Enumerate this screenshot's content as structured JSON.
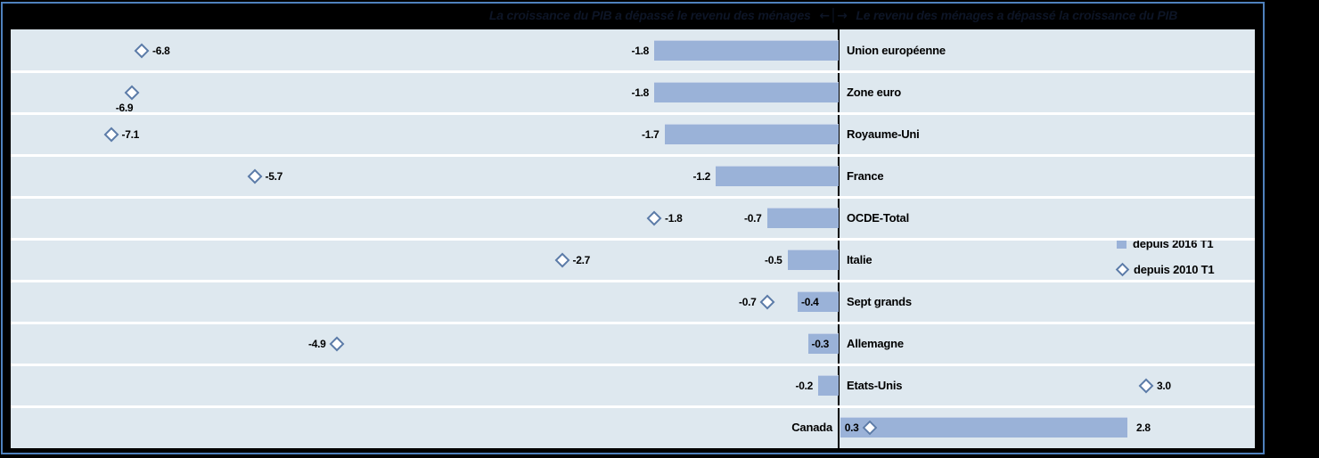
{
  "chart_data": {
    "type": "bar",
    "orientation": "horizontal",
    "title_left": "La croissance du PIB a dépassé le revenu des ménages",
    "title_divider": "←│→",
    "title_right": "Le revenu des ménages a dépassé la croissance du PIB",
    "legend_position": "middle-right",
    "legend": [
      {
        "label": "depuis 2016 T1",
        "marker": "square"
      },
      {
        "label": "depuis 2010 T1",
        "marker": "diamond"
      }
    ],
    "xlim": [
      -8.1,
      4.1
    ],
    "grid": "row-bands-with-white-separators",
    "categories": [
      "Union européenne",
      "Zone euro",
      "Royaume-Uni",
      "France",
      "OCDE-Total",
      "Italie",
      "Sept grands",
      "Allemagne",
      "Etats-Unis",
      "Canada"
    ],
    "series": [
      {
        "name": "depuis 2016 T1",
        "marker": "bar",
        "values": [
          -1.8,
          -1.8,
          -1.7,
          -1.2,
          -0.7,
          -0.5,
          -0.4,
          -0.3,
          -0.2,
          2.8
        ]
      },
      {
        "name": "depuis 2010 T1",
        "marker": "diamond",
        "values": [
          -6.8,
          -6.9,
          -7.1,
          -5.7,
          -1.8,
          -2.7,
          -0.7,
          -4.9,
          3.0,
          0.3
        ]
      }
    ],
    "rows": [
      {
        "category": "Union européenne",
        "bar": -1.8,
        "bar_label": "-1.8",
        "bar_label_pos": "outside-left",
        "diamond": -6.8,
        "diamond_label": "-6.8",
        "diamond_label_pos": "right",
        "category_side": "right"
      },
      {
        "category": "Zone euro",
        "bar": -1.8,
        "bar_label": "-1.8",
        "bar_label_pos": "outside-left",
        "diamond": -6.9,
        "diamond_label": "-6.9",
        "diamond_label_pos": "below",
        "category_side": "right"
      },
      {
        "category": "Royaume-Uni",
        "bar": -1.7,
        "bar_label": "-1.7",
        "bar_label_pos": "outside-left",
        "diamond": -7.1,
        "diamond_label": "-7.1",
        "diamond_label_pos": "right",
        "category_side": "right"
      },
      {
        "category": "France",
        "bar": -1.2,
        "bar_label": "-1.2",
        "bar_label_pos": "outside-left",
        "diamond": -5.7,
        "diamond_label": "-5.7",
        "diamond_label_pos": "right",
        "category_side": "right"
      },
      {
        "category": "OCDE-Total",
        "bar": -0.7,
        "bar_label": "-0.7",
        "bar_label_pos": "outside-left",
        "diamond": -1.8,
        "diamond_label": "-1.8",
        "diamond_label_pos": "right",
        "category_side": "right"
      },
      {
        "category": "Italie",
        "bar": -0.5,
        "bar_label": "-0.5",
        "bar_label_pos": "outside-left",
        "diamond": -2.7,
        "diamond_label": "-2.7",
        "diamond_label_pos": "right",
        "category_side": "right"
      },
      {
        "category": "Sept grands",
        "bar": -0.4,
        "bar_label": "-0.4",
        "bar_label_pos": "on-bar",
        "diamond": -0.7,
        "diamond_label": "-0.7",
        "diamond_label_pos": "left",
        "category_side": "right"
      },
      {
        "category": "Allemagne",
        "bar": -0.3,
        "bar_label": "-0.3",
        "bar_label_pos": "on-bar",
        "diamond": -4.9,
        "diamond_label": "-4.9",
        "diamond_label_pos": "left",
        "category_side": "right"
      },
      {
        "category": "Etats-Unis",
        "bar": -0.2,
        "bar_label": "-0.2",
        "bar_label_pos": "outside-left",
        "diamond": 3.0,
        "diamond_label": "3.0",
        "diamond_label_pos": "right",
        "category_side": "right"
      },
      {
        "category": "Canada",
        "bar": 2.8,
        "bar_label": "2.8",
        "bar_label_pos": "outside-right",
        "diamond": 0.3,
        "diamond_label": "0.3",
        "diamond_label_pos": "left",
        "category_side": "left"
      }
    ],
    "colors": {
      "bar": "#9ab2d8",
      "row_band": "#dee8ef",
      "separator": "#ffffff",
      "frame_border": "#4f81bd",
      "axis": "#000000",
      "diamond_stroke": "#5b7ba8",
      "diamond_fill": "#ffffff",
      "title_text": "#0d1526",
      "label_text": "#000000",
      "background": "#000000"
    }
  }
}
